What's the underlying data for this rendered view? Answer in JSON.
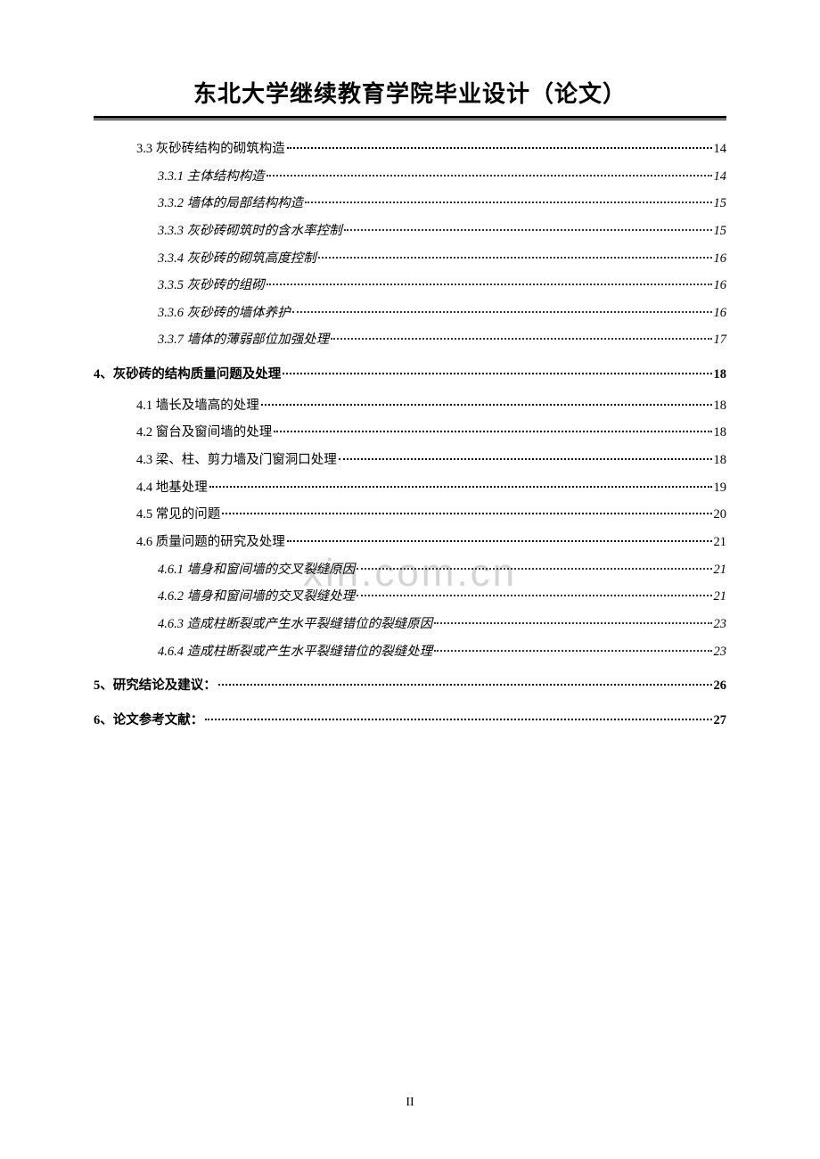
{
  "header": {
    "title": "东北大学继续教育学院毕业设计（论文）"
  },
  "watermark": "xin.com.cn",
  "pageNumber": "II",
  "toc": [
    {
      "level": 2,
      "label": "3.3 灰砂砖结构的砌筑构造",
      "page": "14"
    },
    {
      "level": 3,
      "label": "3.3.1 主体结构构造",
      "page": "14"
    },
    {
      "level": 3,
      "label": "3.3.2 墙体的局部结构构造",
      "page": "15"
    },
    {
      "level": 3,
      "label": "3.3.3 灰砂砖砌筑时的含水率控制",
      "page": "15"
    },
    {
      "level": 3,
      "label": "3.3.4 灰砂砖的砌筑高度控制",
      "page": "16"
    },
    {
      "level": 3,
      "label": "3.3.5 灰砂砖的组砌",
      "page": "16"
    },
    {
      "level": 3,
      "label": "3.3.6 灰砂砖的墙体养护",
      "page": "16"
    },
    {
      "level": 3,
      "label": "3.3.7 墙体的薄弱部位加强处理",
      "page": "17"
    },
    {
      "level": 1,
      "label": "4、灰砂砖的结构质量问题及处理 ",
      "page": "18"
    },
    {
      "level": 2,
      "label": "4.1 墙长及墙高的处理",
      "page": "18"
    },
    {
      "level": 2,
      "label": "4.2 窗台及窗间墙的处理",
      "page": "18"
    },
    {
      "level": 2,
      "label": "4.3 梁、柱、剪力墙及门窗洞口处理",
      "page": "18"
    },
    {
      "level": 2,
      "label": "4.4 地基处理",
      "page": "19"
    },
    {
      "level": 2,
      "label": "4.5 常见的问题",
      "page": "20"
    },
    {
      "level": 2,
      "label": "4.6 质量问题的研究及处理",
      "page": "21"
    },
    {
      "level": 3,
      "label": "4.6.1 墙身和窗间墙的交叉裂缝原因",
      "page": "21"
    },
    {
      "level": 3,
      "label": "4.6.2 墙身和窗间墙的交叉裂缝处理",
      "page": "21"
    },
    {
      "level": 3,
      "label": "4.6.3 造成柱断裂或产生水平裂缝错位的裂缝原因",
      "page": "23"
    },
    {
      "level": 3,
      "label": "4.6.4 造成柱断裂或产生水平裂缝错位的裂缝处理",
      "page": "23"
    },
    {
      "level": 1,
      "label": "5、研究结论及建议：",
      "page": "26"
    },
    {
      "level": 1,
      "label": "6、论文参考文献：",
      "page": "27"
    }
  ]
}
